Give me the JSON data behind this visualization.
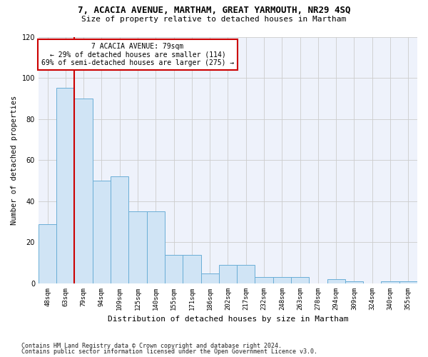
{
  "title1": "7, ACACIA AVENUE, MARTHAM, GREAT YARMOUTH, NR29 4SQ",
  "title2": "Size of property relative to detached houses in Martham",
  "xlabel": "Distribution of detached houses by size in Martham",
  "ylabel": "Number of detached properties",
  "footer1": "Contains HM Land Registry data © Crown copyright and database right 2024.",
  "footer2": "Contains public sector information licensed under the Open Government Licence v3.0.",
  "annotation_line1": "7 ACACIA AVENUE: 79sqm",
  "annotation_line2": "← 29% of detached houses are smaller (114)",
  "annotation_line3": "69% of semi-detached houses are larger (275) →",
  "bar_color": "#d0e4f5",
  "bar_edge_color": "#6aaed6",
  "redline_color": "#cc0000",
  "annotation_box_edge": "#cc0000",
  "bins": [
    "48sqm",
    "63sqm",
    "79sqm",
    "94sqm",
    "109sqm",
    "125sqm",
    "140sqm",
    "155sqm",
    "171sqm",
    "186sqm",
    "202sqm",
    "217sqm",
    "232sqm",
    "248sqm",
    "263sqm",
    "278sqm",
    "294sqm",
    "309sqm",
    "324sqm",
    "340sqm",
    "355sqm"
  ],
  "values": [
    29,
    95,
    90,
    50,
    52,
    35,
    35,
    14,
    14,
    5,
    9,
    9,
    3,
    3,
    3,
    0,
    2,
    1,
    0,
    1,
    1
  ],
  "redline_bin_index": 2,
  "ylim": [
    0,
    120
  ],
  "yticks": [
    0,
    20,
    40,
    60,
    80,
    100,
    120
  ],
  "grid_color": "#cccccc",
  "plot_bg_color": "#eef2fb"
}
